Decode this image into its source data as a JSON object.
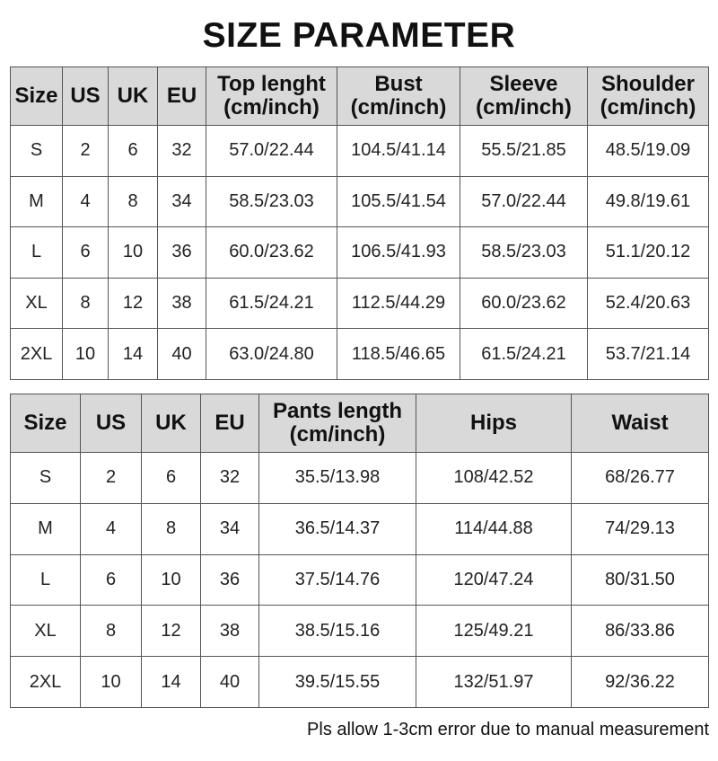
{
  "title": "SIZE PARAMETER",
  "top_table": {
    "headers": [
      "Size",
      "US",
      "UK",
      "EU",
      "Top lenght\n(cm/inch)",
      "Bust\n(cm/inch)",
      "Sleeve\n(cm/inch)",
      "Shoulder\n(cm/inch)"
    ],
    "rows": [
      [
        "S",
        "2",
        "6",
        "32",
        "57.0/22.44",
        "104.5/41.14",
        "55.5/21.85",
        "48.5/19.09"
      ],
      [
        "M",
        "4",
        "8",
        "34",
        "58.5/23.03",
        "105.5/41.54",
        "57.0/22.44",
        "49.8/19.61"
      ],
      [
        "L",
        "6",
        "10",
        "36",
        "60.0/23.62",
        "106.5/41.93",
        "58.5/23.03",
        "51.1/20.12"
      ],
      [
        "XL",
        "8",
        "12",
        "38",
        "61.5/24.21",
        "112.5/44.29",
        "60.0/23.62",
        "52.4/20.63"
      ],
      [
        "2XL",
        "10",
        "14",
        "40",
        "63.0/24.80",
        "118.5/46.65",
        "61.5/24.21",
        "53.7/21.14"
      ]
    ]
  },
  "bottom_table": {
    "headers": [
      "Size",
      "US",
      "UK",
      "EU",
      "Pants length\n(cm/inch)",
      "Hips",
      "Waist"
    ],
    "rows": [
      [
        "S",
        "2",
        "6",
        "32",
        "35.5/13.98",
        "108/42.52",
        "68/26.77"
      ],
      [
        "M",
        "4",
        "8",
        "34",
        "36.5/14.37",
        "114/44.88",
        "74/29.13"
      ],
      [
        "L",
        "6",
        "10",
        "36",
        "37.5/14.76",
        "120/47.24",
        "80/31.50"
      ],
      [
        "XL",
        "8",
        "12",
        "38",
        "38.5/15.16",
        "125/49.21",
        "86/33.86"
      ],
      [
        "2XL",
        "10",
        "14",
        "40",
        "39.5/15.55",
        "132/51.97",
        "92/36.22"
      ]
    ]
  },
  "note": "Pls allow 1-3cm error due to manual measurement",
  "colors": {
    "header_bg": "#d9d9d9",
    "border": "#555555",
    "text": "#111111"
  }
}
